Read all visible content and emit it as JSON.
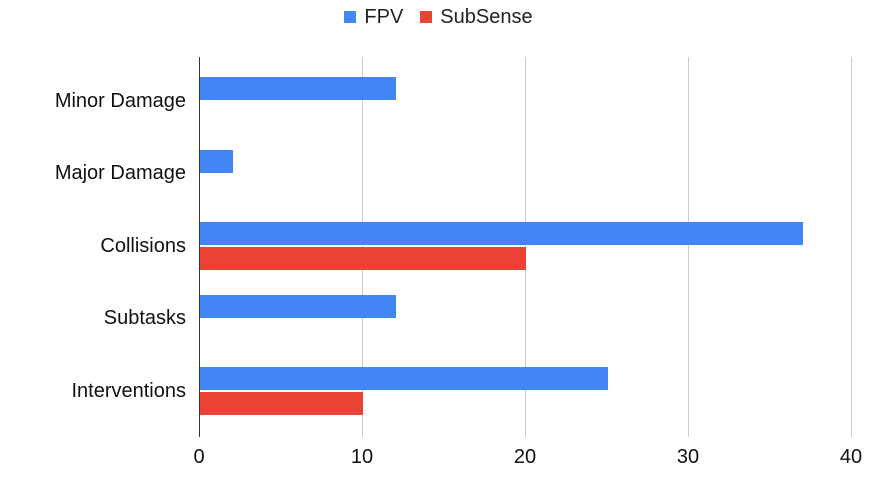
{
  "chart_data": {
    "type": "bar",
    "orientation": "horizontal",
    "title": "",
    "xlabel": "",
    "ylabel": "",
    "categories": [
      "Minor Damage",
      "Major Damage",
      "Collisions",
      "Subtasks",
      "Interventions"
    ],
    "series": [
      {
        "name": "FPV",
        "color": "#4285F4",
        "values": [
          12,
          2,
          37,
          12,
          25
        ]
      },
      {
        "name": "SubSense",
        "color": "#EA4335",
        "values": [
          0,
          0,
          20,
          0,
          10
        ]
      }
    ],
    "xlim": [
      0,
      40
    ],
    "xticks": [
      0,
      10,
      20,
      30,
      40
    ],
    "grid": true,
    "legend_position": "top",
    "background_color": "#ffffff",
    "gridline_color": "#cccccc",
    "axis_line_color": "#333333",
    "text_color": "#111111"
  }
}
